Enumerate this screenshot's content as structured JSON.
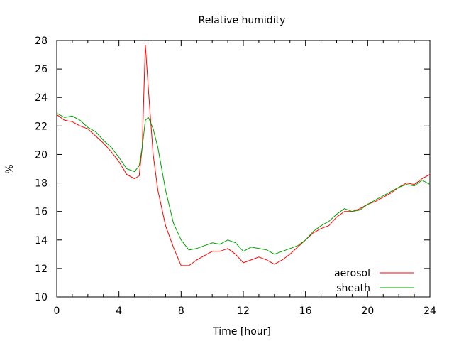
{
  "chart_data": {
    "type": "line",
    "title": "Relative humidity",
    "xlabel": "Time [hour]",
    "ylabel": "%",
    "xlim": [
      0,
      24
    ],
    "ylim": [
      10,
      28
    ],
    "xticks": [
      0,
      4,
      8,
      12,
      16,
      20,
      24
    ],
    "yticks": [
      10,
      12,
      14,
      16,
      18,
      20,
      22,
      24,
      26,
      28
    ],
    "legend_position": "bottom-right",
    "grid": false,
    "series": [
      {
        "name": "aerosol",
        "color": "#ff0000",
        "x": [
          0,
          0.5,
          1,
          1.5,
          2,
          2.5,
          3,
          3.5,
          4,
          4.5,
          5,
          5.3,
          5.5,
          5.7,
          5.9,
          6.2,
          6.5,
          7,
          7.5,
          8,
          8.5,
          9,
          9.5,
          10,
          10.5,
          11,
          11.5,
          12,
          12.5,
          13,
          13.5,
          14,
          14.5,
          15,
          15.5,
          16,
          16.5,
          17,
          17.5,
          18,
          18.5,
          19,
          19.5,
          20,
          20.5,
          21,
          21.5,
          22,
          22.5,
          23,
          23.5,
          24
        ],
        "values": [
          22.8,
          22.4,
          22.3,
          22.0,
          21.8,
          21.3,
          20.8,
          20.2,
          19.5,
          18.6,
          18.3,
          18.5,
          20.5,
          27.7,
          24.5,
          20.0,
          17.5,
          15.0,
          13.5,
          12.2,
          12.2,
          12.6,
          12.9,
          13.2,
          13.2,
          13.4,
          13.0,
          12.4,
          12.6,
          12.8,
          12.6,
          12.3,
          12.6,
          13.0,
          13.5,
          14.0,
          14.5,
          14.8,
          15.0,
          15.6,
          16.0,
          16.0,
          16.2,
          16.5,
          16.7,
          17.0,
          17.3,
          17.7,
          18.0,
          17.9,
          18.3,
          18.6
        ]
      },
      {
        "name": "sheath",
        "color": "#00a000",
        "x": [
          0,
          0.5,
          1,
          1.5,
          2,
          2.5,
          3,
          3.5,
          4,
          4.5,
          5,
          5.3,
          5.5,
          5.7,
          5.9,
          6.2,
          6.5,
          7,
          7.5,
          8,
          8.5,
          9,
          9.5,
          10,
          10.5,
          11,
          11.5,
          12,
          12.5,
          13,
          13.5,
          14,
          14.5,
          15,
          15.5,
          16,
          16.5,
          17,
          17.5,
          18,
          18.5,
          19,
          19.5,
          20,
          20.5,
          21,
          21.5,
          22,
          22.5,
          23,
          23.5,
          24
        ],
        "values": [
          22.9,
          22.6,
          22.7,
          22.4,
          21.9,
          21.6,
          21.0,
          20.5,
          19.8,
          19.0,
          18.8,
          19.2,
          20.5,
          22.4,
          22.6,
          21.8,
          20.5,
          17.5,
          15.2,
          14.0,
          13.3,
          13.4,
          13.6,
          13.8,
          13.7,
          14.0,
          13.8,
          13.2,
          13.5,
          13.4,
          13.3,
          13.0,
          13.2,
          13.4,
          13.6,
          14.0,
          14.6,
          15.0,
          15.3,
          15.8,
          16.2,
          16.0,
          16.1,
          16.5,
          16.8,
          17.1,
          17.4,
          17.7,
          17.9,
          17.8,
          18.2,
          17.9
        ]
      }
    ]
  }
}
